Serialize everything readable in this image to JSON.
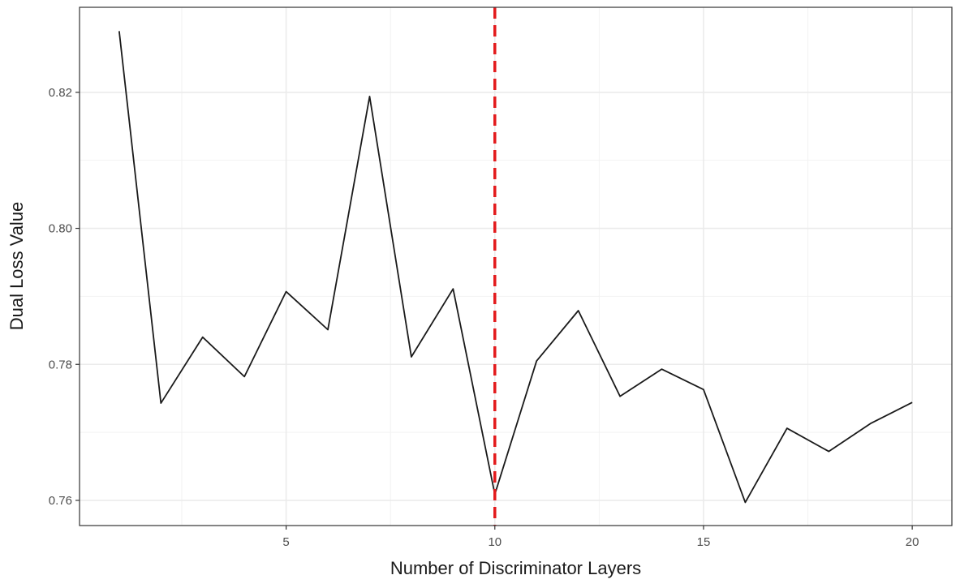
{
  "chart_data": {
    "type": "line",
    "xlabel": "Number of Discriminator Layers",
    "ylabel": "Dual Loss Value",
    "xlim": [
      0.05,
      20.95
    ],
    "ylim": [
      0.7563,
      0.8325
    ],
    "x_ticks": [
      5,
      10,
      15,
      20
    ],
    "y_ticks": [
      0.76,
      0.78,
      0.8,
      0.82
    ],
    "y_tick_labels": [
      "0.76",
      "0.78",
      "0.80",
      "0.82"
    ],
    "x_minor_grid": [
      2.5,
      7.5,
      12.5,
      17.5
    ],
    "y_minor_grid": [
      0.77,
      0.79,
      0.81
    ],
    "grid": true,
    "series": [
      {
        "color": "#1a1a1a",
        "x": [
          1,
          2,
          3,
          4,
          5,
          6,
          7,
          8,
          9,
          10,
          11,
          12,
          13,
          14,
          15,
          16,
          17,
          18,
          19,
          20
        ],
        "values": [
          0.829,
          0.7743,
          0.784,
          0.7782,
          0.7907,
          0.7851,
          0.8194,
          0.7811,
          0.7911,
          0.7609,
          0.7805,
          0.7879,
          0.7753,
          0.7793,
          0.7763,
          0.7597,
          0.7706,
          0.7672,
          0.7713,
          0.7744
        ]
      }
    ],
    "reference_line": {
      "axis": "x",
      "value": 10,
      "color": "#e31a1c",
      "style": "dashed"
    }
  }
}
